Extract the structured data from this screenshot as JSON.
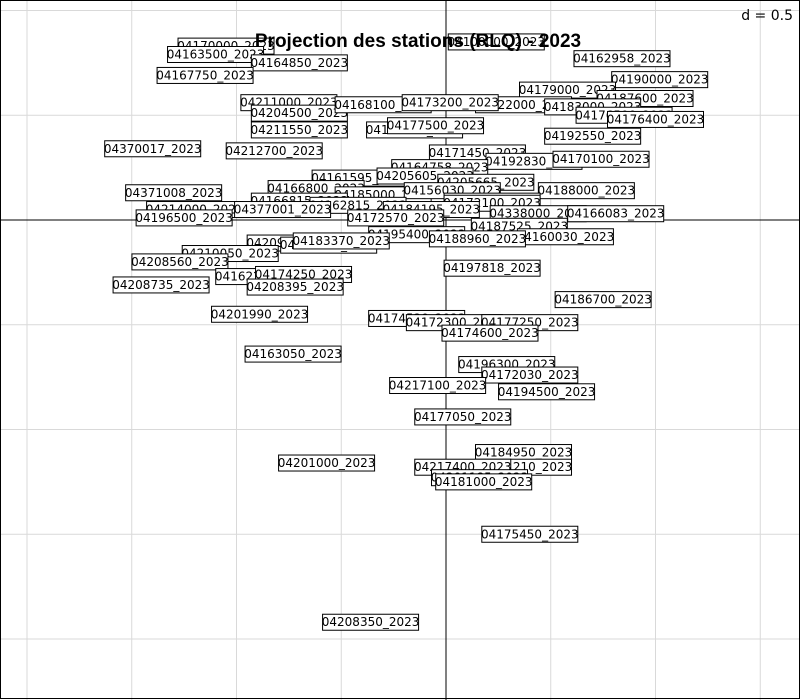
{
  "chart_data": {
    "type": "scatter",
    "title": "Projection des stations (RLQ) - 2023",
    "scale_label": "d = 0.5",
    "grid_step": 0.5,
    "xlim": [
      -2.1,
      1.65
    ],
    "ylim": [
      -2.3,
      1.0
    ],
    "grid": true,
    "points": [
      {
        "label": "04170000_2023",
        "x": -1.05,
        "y": 0.83
      },
      {
        "label": "04163500_2023",
        "x": -1.1,
        "y": 0.79
      },
      {
        "label": "04164850_2023",
        "x": -0.7,
        "y": 0.75
      },
      {
        "label": "04167750_2023",
        "x": -1.15,
        "y": 0.69
      },
      {
        "label": "04100000_2023",
        "x": 0.24,
        "y": 0.85
      },
      {
        "label": "04162958_2023",
        "x": 0.84,
        "y": 0.77
      },
      {
        "label": "04190000_2023",
        "x": 1.02,
        "y": 0.67
      },
      {
        "label": "04179000_2023",
        "x": 0.58,
        "y": 0.62
      },
      {
        "label": "04187600_2023",
        "x": 0.95,
        "y": 0.58
      },
      {
        "label": "04322000_2023",
        "x": 0.37,
        "y": 0.55
      },
      {
        "label": "04183000_2023",
        "x": 0.7,
        "y": 0.54
      },
      {
        "label": "04176500_2023",
        "x": 0.85,
        "y": 0.5
      },
      {
        "label": "04176400_2023",
        "x": 1.0,
        "y": 0.48
      },
      {
        "label": "04211000_2023",
        "x": -0.75,
        "y": 0.56
      },
      {
        "label": "04204500_2023",
        "x": -0.7,
        "y": 0.51
      },
      {
        "label": "04168100_2023",
        "x": -0.3,
        "y": 0.55
      },
      {
        "label": "04173200_2023",
        "x": 0.02,
        "y": 0.56
      },
      {
        "label": "04211550_2023",
        "x": -0.7,
        "y": 0.43
      },
      {
        "label": "04177320_2023",
        "x": -0.15,
        "y": 0.43
      },
      {
        "label": "04177500_2023",
        "x": -0.05,
        "y": 0.45
      },
      {
        "label": "04192550_2023",
        "x": 0.7,
        "y": 0.4
      },
      {
        "label": "04370017_2023",
        "x": -1.4,
        "y": 0.34
      },
      {
        "label": "04212700_2023",
        "x": -0.82,
        "y": 0.33
      },
      {
        "label": "04171450_2023",
        "x": 0.15,
        "y": 0.32
      },
      {
        "label": "04192830_2023",
        "x": 0.42,
        "y": 0.28
      },
      {
        "label": "04170100_2023",
        "x": 0.74,
        "y": 0.29
      },
      {
        "label": "04164758_2023",
        "x": -0.03,
        "y": 0.25
      },
      {
        "label": "04161595_2023",
        "x": -0.41,
        "y": 0.2
      },
      {
        "label": "04205605_2023",
        "x": -0.1,
        "y": 0.21
      },
      {
        "label": "04205665_2023",
        "x": 0.19,
        "y": 0.18
      },
      {
        "label": "04188000_2023",
        "x": 0.67,
        "y": 0.14
      },
      {
        "label": "04371008_2023",
        "x": -1.3,
        "y": 0.13
      },
      {
        "label": "04166800_2023",
        "x": -0.62,
        "y": 0.15
      },
      {
        "label": "04185000_2023",
        "x": -0.3,
        "y": 0.12
      },
      {
        "label": "04156030_2023",
        "x": 0.03,
        "y": 0.14
      },
      {
        "label": "04175100_2023",
        "x": 0.22,
        "y": 0.09
      },
      {
        "label": "04166815_2023",
        "x": -0.7,
        "y": 0.09
      },
      {
        "label": "04162815_2023",
        "x": -0.42,
        "y": 0.07
      },
      {
        "label": "04172100_2023",
        "x": 0.22,
        "y": 0.08
      },
      {
        "label": "04184195_2023",
        "x": -0.07,
        "y": 0.05
      },
      {
        "label": "04214000_2023",
        "x": -1.2,
        "y": 0.05
      },
      {
        "label": "04377001_2023",
        "x": -0.78,
        "y": 0.05
      },
      {
        "label": "04196500_2023",
        "x": -1.25,
        "y": 0.01
      },
      {
        "label": "04338000_2023",
        "x": 0.44,
        "y": 0.03
      },
      {
        "label": "04166083_2023",
        "x": 0.81,
        "y": 0.03
      },
      {
        "label": "04172570_2023",
        "x": -0.24,
        "y": 0.01
      },
      {
        "label": "04187525_2023",
        "x": 0.35,
        "y": -0.03
      },
      {
        "label": "04195400_2023",
        "x": -0.14,
        "y": -0.07
      },
      {
        "label": "04160030_2023",
        "x": 0.57,
        "y": -0.08
      },
      {
        "label": "04188960_2023",
        "x": 0.15,
        "y": -0.09
      },
      {
        "label": "04209000_2023",
        "x": -0.72,
        "y": -0.11
      },
      {
        "label": "04185365_2023",
        "x": -0.56,
        "y": -0.12
      },
      {
        "label": "04183370_2023",
        "x": -0.5,
        "y": -0.1
      },
      {
        "label": "04210050_2023",
        "x": -1.03,
        "y": -0.16
      },
      {
        "label": "04208560_2023",
        "x": -1.27,
        "y": -0.2
      },
      {
        "label": "04197818_2023",
        "x": 0.22,
        "y": -0.23
      },
      {
        "label": "04162200_2023",
        "x": -0.87,
        "y": -0.27
      },
      {
        "label": "04174250_2023",
        "x": -0.68,
        "y": -0.26
      },
      {
        "label": "04208735_2023",
        "x": -1.36,
        "y": -0.31
      },
      {
        "label": "04208395_2023",
        "x": -0.72,
        "y": -0.32
      },
      {
        "label": "04186700_2023",
        "x": 0.75,
        "y": -0.38
      },
      {
        "label": "04201990_2023",
        "x": -0.89,
        "y": -0.45
      },
      {
        "label": "04174520_2023",
        "x": -0.14,
        "y": -0.47
      },
      {
        "label": "04172300_2023",
        "x": 0.04,
        "y": -0.49
      },
      {
        "label": "04177250_2023",
        "x": 0.4,
        "y": -0.49
      },
      {
        "label": "04174600_2023",
        "x": 0.21,
        "y": -0.54
      },
      {
        "label": "04163050_2023",
        "x": -0.73,
        "y": -0.64
      },
      {
        "label": "04196300_2023",
        "x": 0.29,
        "y": -0.69
      },
      {
        "label": "04172030_2023",
        "x": 0.4,
        "y": -0.74
      },
      {
        "label": "04217100_2023",
        "x": -0.04,
        "y": -0.79
      },
      {
        "label": "04194500_2023",
        "x": 0.48,
        "y": -0.82
      },
      {
        "label": "04177050_2023",
        "x": 0.08,
        "y": -0.94
      },
      {
        "label": "04184950_2023",
        "x": 0.37,
        "y": -1.11
      },
      {
        "label": "04201000_2023",
        "x": -0.57,
        "y": -1.16
      },
      {
        "label": "04201210_2023",
        "x": 0.37,
        "y": -1.18
      },
      {
        "label": "04217400_2023",
        "x": 0.08,
        "y": -1.18
      },
      {
        "label": "04201185_2023",
        "x": 0.16,
        "y": -1.23
      },
      {
        "label": "04181000_2023",
        "x": 0.18,
        "y": -1.25
      },
      {
        "label": "04175450_2023",
        "x": 0.4,
        "y": -1.5
      },
      {
        "label": "04208350_2023",
        "x": -0.36,
        "y": -1.92
      }
    ]
  }
}
